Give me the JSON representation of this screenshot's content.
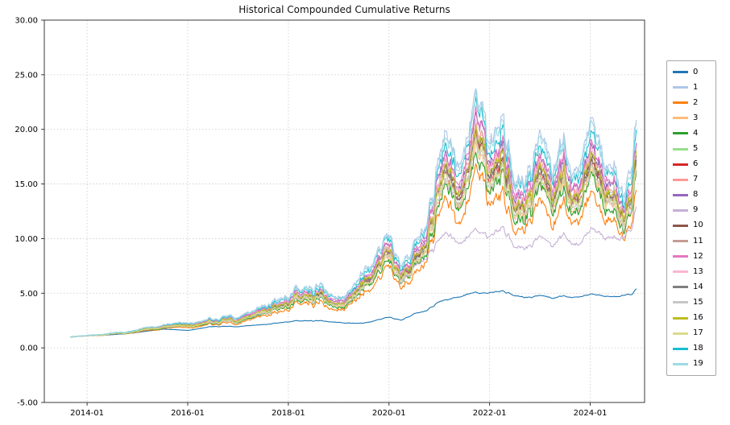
{
  "chart_data": {
    "type": "line",
    "title": "Historical Compounded Cumulative Returns",
    "xlabel": "",
    "ylabel": "",
    "ylim": [
      -5,
      30
    ],
    "xlim_years": [
      2013.15,
      2025.08
    ],
    "grid": true,
    "grid_style": "dotted",
    "legend_position": "right",
    "y_ticks": [
      -5,
      0,
      5,
      10,
      15,
      20,
      25,
      30
    ],
    "y_tick_labels": [
      "-5.00",
      "0.00",
      "5.00",
      "10.00",
      "15.00",
      "20.00",
      "25.00",
      "30.00"
    ],
    "x_tick_labels": [
      "2014-01",
      "2016-01",
      "2018-01",
      "2020-01",
      "2022-01",
      "2024-01"
    ],
    "x": [
      "2013-09",
      "2014-01",
      "2014-07",
      "2015-01",
      "2015-07",
      "2016-01",
      "2016-07",
      "2017-01",
      "2017-07",
      "2018-01",
      "2018-07",
      "2019-01",
      "2019-07",
      "2020-01",
      "2020-04",
      "2020-07",
      "2020-10",
      "2021-01",
      "2021-03",
      "2021-05",
      "2021-08",
      "2021-11",
      "2022-01",
      "2022-04",
      "2022-07",
      "2022-10",
      "2023-01",
      "2023-04",
      "2023-07",
      "2023-10",
      "2024-01",
      "2024-04",
      "2024-07",
      "2024-09",
      "2024-11",
      "2024-12"
    ],
    "series": [
      {
        "name": "0",
        "color": "#1f77b4",
        "values": [
          1.0,
          1.1,
          1.2,
          1.4,
          1.7,
          1.6,
          1.95,
          1.95,
          2.1,
          2.4,
          2.5,
          2.35,
          2.25,
          2.8,
          2.5,
          3.1,
          3.4,
          4.2,
          4.4,
          4.6,
          4.95,
          5.05,
          5.0,
          5.2,
          4.8,
          4.55,
          4.7,
          4.55,
          4.75,
          4.55,
          4.8,
          4.75,
          4.65,
          4.7,
          4.85,
          5.4
        ]
      },
      {
        "name": "1",
        "color": "#aec7e8",
        "values": [
          1.0,
          1.14,
          1.35,
          1.65,
          2.06,
          2.3,
          2.59,
          2.89,
          3.6,
          4.89,
          5.6,
          4.89,
          6.78,
          10.44,
          6.9,
          9.26,
          11.38,
          16.93,
          19.29,
          16.34,
          19.88,
          24.0,
          17.52,
          20.47,
          15.75,
          15.16,
          17.52,
          16.34,
          19.29,
          14.57,
          18.7,
          17.52,
          16.34,
          12.21,
          15.75,
          20.47
        ]
      },
      {
        "name": "2",
        "color": "#ff7f0e",
        "values": [
          1.0,
          1.1,
          1.24,
          1.44,
          1.72,
          1.88,
          2.08,
          2.28,
          2.76,
          3.64,
          4.12,
          3.64,
          4.92,
          7.4,
          5.0,
          6.6,
          8.04,
          11.8,
          13.4,
          11.4,
          13.8,
          16.6,
          12.2,
          14.2,
          11.0,
          10.6,
          12.2,
          11.4,
          13.4,
          10.2,
          13.0,
          12.2,
          11.4,
          8.6,
          11.0,
          14.2
        ]
      },
      {
        "name": "3",
        "color": "#ffbb78",
        "values": [
          1.0,
          1.11,
          1.27,
          1.5,
          1.81,
          1.99,
          2.22,
          2.44,
          2.98,
          3.97,
          4.51,
          3.97,
          5.41,
          8.2,
          5.5,
          7.3,
          8.92,
          13.15,
          14.95,
          12.7,
          15.4,
          18.55,
          13.6,
          15.85,
          12.25,
          11.8,
          13.6,
          12.7,
          14.95,
          11.35,
          14.5,
          13.6,
          12.7,
          9.55,
          12.25,
          15.85
        ]
      },
      {
        "name": "4",
        "color": "#2ca02c",
        "values": [
          1.0,
          1.11,
          1.26,
          1.48,
          1.79,
          1.97,
          2.19,
          2.41,
          2.94,
          3.9,
          4.43,
          3.9,
          5.31,
          8.04,
          5.4,
          7.16,
          8.74,
          12.88,
          14.64,
          12.44,
          15.08,
          18.16,
          13.32,
          15.52,
          12.0,
          11.56,
          13.32,
          12.44,
          14.64,
          11.12,
          14.2,
          13.32,
          12.44,
          9.36,
          12.0,
          15.52
        ]
      },
      {
        "name": "5",
        "color": "#98df8a",
        "values": [
          1.0,
          1.12,
          1.3,
          1.55,
          1.9,
          2.1,
          2.35,
          2.6,
          3.2,
          4.3,
          4.9,
          4.3,
          5.9,
          9.0,
          6.0,
          8.0,
          9.8,
          14.5,
          16.5,
          14.0,
          17.0,
          20.5,
          15.0,
          17.5,
          13.5,
          13.0,
          15.0,
          14.0,
          16.5,
          12.5,
          16.0,
          15.0,
          14.0,
          10.5,
          13.5,
          17.5
        ]
      },
      {
        "name": "6",
        "color": "#d62728",
        "values": [
          1.0,
          1.12,
          1.29,
          1.53,
          1.86,
          2.06,
          2.3,
          2.54,
          3.11,
          4.17,
          4.74,
          4.17,
          5.7,
          8.68,
          5.8,
          7.72,
          9.45,
          13.96,
          15.88,
          13.48,
          16.36,
          19.72,
          14.44,
          16.84,
          13.0,
          12.52,
          14.44,
          13.48,
          15.88,
          12.04,
          15.4,
          14.44,
          13.48,
          10.12,
          13.0,
          16.84
        ]
      },
      {
        "name": "7",
        "color": "#ff9896",
        "values": [
          1.0,
          1.12,
          1.31,
          1.56,
          1.92,
          2.12,
          2.38,
          2.63,
          3.24,
          4.37,
          4.98,
          4.37,
          6.0,
          9.16,
          6.1,
          8.14,
          9.98,
          14.77,
          16.81,
          14.26,
          17.32,
          20.89,
          15.28,
          17.83,
          13.75,
          13.24,
          15.28,
          14.26,
          16.81,
          12.73,
          16.3,
          15.28,
          14.26,
          10.69,
          13.75,
          17.83
        ]
      },
      {
        "name": "8",
        "color": "#9467bd",
        "values": [
          1.0,
          1.13,
          1.32,
          1.58,
          1.95,
          2.16,
          2.42,
          2.68,
          3.31,
          4.47,
          5.1,
          4.47,
          6.15,
          9.4,
          6.25,
          8.35,
          10.24,
          15.18,
          17.28,
          14.65,
          17.8,
          21.48,
          15.7,
          18.33,
          14.13,
          13.6,
          15.7,
          14.65,
          17.28,
          13.08,
          16.75,
          15.7,
          14.65,
          10.98,
          14.13,
          18.33
        ]
      },
      {
        "name": "9",
        "color": "#c5b0d5",
        "values": [
          1.0,
          1.11,
          1.28,
          1.52,
          1.86,
          2.05,
          2.28,
          2.52,
          3.09,
          4.14,
          4.71,
          4.14,
          5.66,
          8.6,
          5.75,
          7.3,
          8.2,
          9.8,
          10.5,
          9.6,
          10.2,
          10.8,
          10.0,
          11.0,
          9.3,
          9.0,
          9.8,
          9.3,
          10.4,
          9.0,
          10.4,
          10.2,
          10.0,
          9.6,
          10.8,
          12.8
        ]
      },
      {
        "name": "10",
        "color": "#8c564b",
        "values": [
          1.0,
          1.12,
          1.29,
          1.54,
          1.88,
          2.08,
          2.32,
          2.57,
          3.16,
          4.23,
          4.82,
          4.23,
          5.8,
          8.84,
          5.9,
          7.86,
          9.62,
          14.23,
          16.19,
          13.74,
          16.68,
          20.11,
          14.72,
          17.17,
          13.25,
          12.76,
          14.72,
          13.74,
          16.19,
          12.27,
          15.7,
          14.72,
          13.74,
          10.31,
          13.25,
          17.17
        ]
      },
      {
        "name": "11",
        "color": "#c49c94",
        "values": [
          1.0,
          1.11,
          1.28,
          1.52,
          1.85,
          2.03,
          2.27,
          2.5,
          3.07,
          4.1,
          4.67,
          4.1,
          5.61,
          8.52,
          5.7,
          7.58,
          9.27,
          13.69,
          15.57,
          13.22,
          16.04,
          19.33,
          14.16,
          16.51,
          12.75,
          12.28,
          14.16,
          13.22,
          15.57,
          11.81,
          15.1,
          14.16,
          13.22,
          9.93,
          12.75,
          16.51
        ]
      },
      {
        "name": "12",
        "color": "#e377c2",
        "values": [
          1.0,
          1.13,
          1.32,
          1.58,
          1.95,
          2.17,
          2.43,
          2.7,
          3.33,
          4.5,
          5.13,
          4.5,
          6.19,
          9.48,
          6.3,
          8.42,
          10.33,
          15.31,
          17.43,
          14.78,
          17.96,
          21.67,
          15.84,
          18.49,
          14.25,
          13.72,
          15.84,
          14.78,
          17.43,
          13.19,
          16.9,
          15.84,
          14.78,
          11.07,
          14.25,
          18.49
        ]
      },
      {
        "name": "13",
        "color": "#f7b6d2",
        "values": [
          1.0,
          1.12,
          1.3,
          1.56,
          1.91,
          2.11,
          2.36,
          2.62,
          3.22,
          4.33,
          4.94,
          4.33,
          5.95,
          9.08,
          6.05,
          8.07,
          9.89,
          14.64,
          16.66,
          14.13,
          17.16,
          20.7,
          15.14,
          17.67,
          13.63,
          13.12,
          15.14,
          14.13,
          16.66,
          12.62,
          16.15,
          15.14,
          14.13,
          10.6,
          13.63,
          17.67
        ]
      },
      {
        "name": "14",
        "color": "#7f7f7f",
        "values": [
          1.0,
          1.12,
          1.29,
          1.53,
          1.87,
          2.07,
          2.31,
          2.55,
          3.13,
          4.2,
          4.78,
          4.2,
          5.75,
          8.76,
          5.85,
          7.79,
          9.54,
          14.1,
          16.04,
          13.61,
          16.52,
          19.92,
          14.58,
          17.01,
          13.13,
          12.64,
          14.58,
          13.61,
          16.04,
          12.16,
          15.55,
          14.58,
          13.61,
          10.22,
          13.13,
          17.01
        ]
      },
      {
        "name": "15",
        "color": "#c7c7c7",
        "values": [
          1.0,
          1.11,
          1.28,
          1.51,
          1.83,
          2.01,
          2.24,
          2.47,
          3.02,
          4.04,
          4.59,
          4.04,
          5.51,
          8.36,
          5.6,
          7.44,
          9.1,
          13.42,
          15.26,
          12.96,
          15.72,
          18.94,
          13.88,
          16.18,
          12.5,
          12.04,
          13.88,
          12.96,
          15.26,
          11.58,
          14.8,
          13.88,
          12.96,
          9.74,
          12.5,
          16.18
        ]
      },
      {
        "name": "16",
        "color": "#bcbd22",
        "values": [
          1.0,
          1.12,
          1.3,
          1.54,
          1.89,
          2.09,
          2.34,
          2.58,
          3.18,
          4.27,
          4.86,
          4.27,
          5.85,
          8.92,
          5.95,
          7.93,
          9.71,
          14.37,
          16.35,
          13.87,
          16.84,
          20.31,
          14.86,
          17.34,
          13.38,
          12.88,
          14.86,
          13.87,
          16.35,
          12.39,
          15.85,
          14.86,
          13.87,
          10.41,
          13.38,
          17.34
        ]
      },
      {
        "name": "17",
        "color": "#dbdb8d",
        "values": [
          1.0,
          1.11,
          1.28,
          1.51,
          1.84,
          2.02,
          2.26,
          2.49,
          3.05,
          4.07,
          4.63,
          4.07,
          5.56,
          8.44,
          5.65,
          7.51,
          9.18,
          13.56,
          15.42,
          13.09,
          15.88,
          19.14,
          14.02,
          16.35,
          12.63,
          12.16,
          14.02,
          13.09,
          15.42,
          11.7,
          14.95,
          14.02,
          13.09,
          9.84,
          12.63,
          16.35
        ]
      },
      {
        "name": "18",
        "color": "#17becf",
        "values": [
          1.0,
          1.13,
          1.34,
          1.62,
          2.01,
          2.23,
          2.51,
          2.79,
          3.46,
          4.7,
          5.37,
          4.7,
          6.49,
          9.96,
          6.6,
          8.84,
          10.86,
          16.12,
          18.36,
          15.56,
          18.92,
          22.84,
          16.68,
          19.48,
          15.0,
          14.44,
          16.68,
          15.56,
          18.36,
          13.88,
          17.8,
          16.68,
          15.56,
          11.64,
          15.0,
          19.48
        ]
      },
      {
        "name": "19",
        "color": "#9edae5",
        "values": [
          1.0,
          1.14,
          1.35,
          1.63,
          2.04,
          2.27,
          2.55,
          2.84,
          3.53,
          4.8,
          5.49,
          4.8,
          6.64,
          10.2,
          6.75,
          9.05,
          11.12,
          16.53,
          18.83,
          15.95,
          19.4,
          23.43,
          17.1,
          19.98,
          15.38,
          14.8,
          17.1,
          15.95,
          18.83,
          14.23,
          18.25,
          17.1,
          15.95,
          11.93,
          15.38,
          19.98
        ]
      }
    ]
  }
}
